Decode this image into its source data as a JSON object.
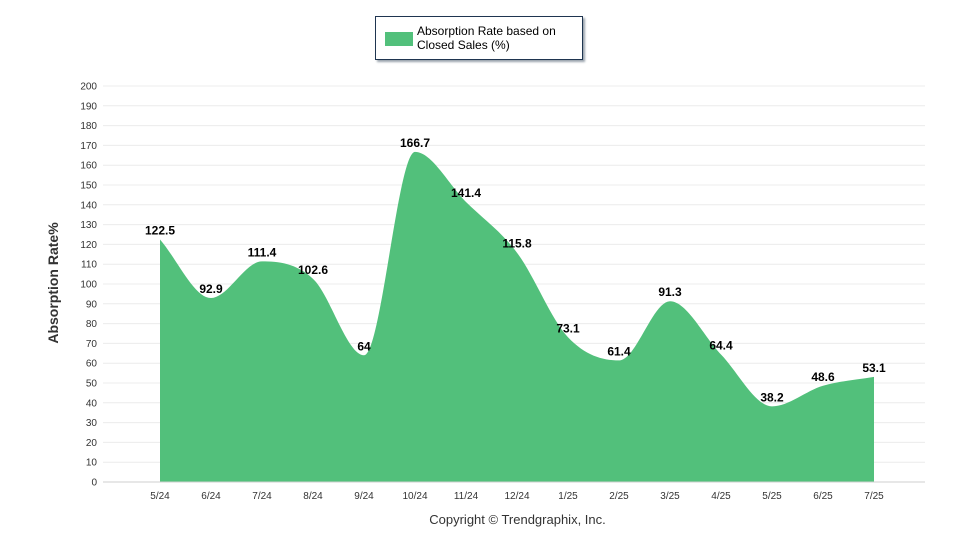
{
  "colors": {
    "series": "#52c07b",
    "legend_border": "#1f3550"
  },
  "legend": {
    "label": "Absorption Rate based on Closed Sales (%)"
  },
  "footer": {
    "copyright": "Copyright © Trendgraphix, Inc."
  },
  "chart_data": {
    "type": "area",
    "title": "",
    "xlabel": "",
    "ylabel": "Absorption Rate%",
    "ylim": [
      0,
      200
    ],
    "ytick_step": 10,
    "grid": true,
    "legend_position": "top-center",
    "categories": [
      "5/24",
      "6/24",
      "7/24",
      "8/24",
      "9/24",
      "10/24",
      "11/24",
      "12/24",
      "1/25",
      "2/25",
      "3/25",
      "4/25",
      "5/25",
      "6/25",
      "7/25"
    ],
    "series": [
      {
        "name": "Absorption Rate based on Closed Sales (%)",
        "values": [
          122.5,
          92.9,
          111.4,
          102.6,
          64,
          166.7,
          141.4,
          115.8,
          73.1,
          61.4,
          91.3,
          64.4,
          38.2,
          48.6,
          53.1
        ],
        "labels": [
          "122.5",
          "92.9",
          "111.4",
          "102.6",
          "64",
          "166.7",
          "141.4",
          "115.8",
          "73.1",
          "61.4",
          "91.3",
          "64.4",
          "38.2",
          "48.6",
          "53.1"
        ]
      }
    ]
  }
}
